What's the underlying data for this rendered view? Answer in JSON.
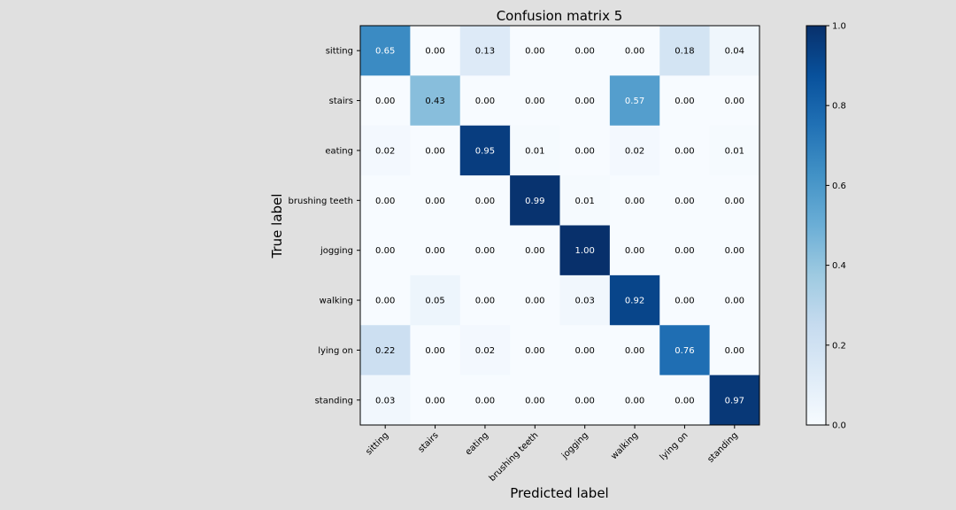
{
  "chart_data": {
    "type": "heatmap",
    "title": "Confusion matrix 5",
    "xlabel": "Predicted label",
    "ylabel": "True label",
    "x_categories": [
      "sitting",
      "stairs",
      "eating",
      "brushing teeth",
      "jogging",
      "walking",
      "lying on",
      "standing"
    ],
    "y_categories": [
      "sitting",
      "stairs",
      "eating",
      "brushing teeth",
      "jogging",
      "walking",
      "lying on",
      "standing"
    ],
    "values": [
      [
        0.65,
        0.0,
        0.13,
        0.0,
        0.0,
        0.0,
        0.18,
        0.04
      ],
      [
        0.0,
        0.43,
        0.0,
        0.0,
        0.0,
        0.57,
        0.0,
        0.0
      ],
      [
        0.02,
        0.0,
        0.95,
        0.01,
        0.0,
        0.02,
        0.0,
        0.01
      ],
      [
        0.0,
        0.0,
        0.0,
        0.99,
        0.01,
        0.0,
        0.0,
        0.0
      ],
      [
        0.0,
        0.0,
        0.0,
        0.0,
        1.0,
        0.0,
        0.0,
        0.0
      ],
      [
        0.0,
        0.05,
        0.0,
        0.0,
        0.03,
        0.92,
        0.0,
        0.0
      ],
      [
        0.22,
        0.0,
        0.02,
        0.0,
        0.0,
        0.0,
        0.76,
        0.0
      ],
      [
        0.03,
        0.0,
        0.0,
        0.0,
        0.0,
        0.0,
        0.0,
        0.97
      ]
    ],
    "colormap": "Blues",
    "colorbar": {
      "range": [
        0.0,
        1.0
      ],
      "ticks": [
        0.0,
        0.2,
        0.4,
        0.6,
        0.8,
        1.0
      ]
    },
    "colors": {
      "background": "#e0e0e0",
      "text_dark": "#000000",
      "text_light": "#ffffff"
    }
  }
}
